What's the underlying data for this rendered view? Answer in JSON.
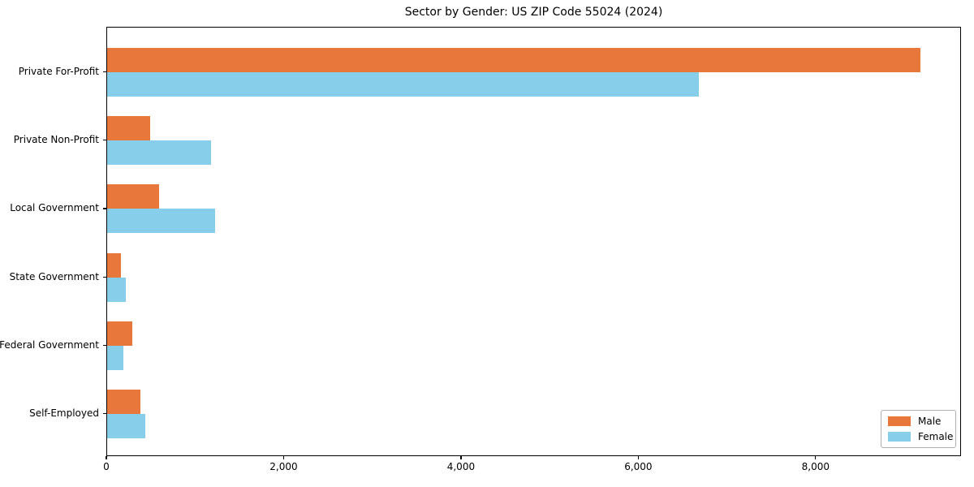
{
  "title": "Sector by Gender: US ZIP Code 55024 (2024)",
  "colors": {
    "male": "#e8773b",
    "female": "#87ceeb",
    "axis": "#000000",
    "legend_border": "#b0b0b0",
    "background": "#ffffff"
  },
  "chart_data": {
    "type": "bar",
    "orientation": "horizontal",
    "title": "Sector by Gender: US ZIP Code 55024 (2024)",
    "categories": [
      "Private For-Profit",
      "Private Non-Profit",
      "Local Government",
      "State Government",
      "Federal Government",
      "Self-Employed"
    ],
    "series": [
      {
        "name": "Male",
        "color": "#e8773b",
        "values": [
          9190,
          485,
          590,
          160,
          285,
          375
        ]
      },
      {
        "name": "Female",
        "color": "#87ceeb",
        "values": [
          6690,
          1170,
          1220,
          215,
          180,
          430
        ]
      }
    ],
    "xlabel": "",
    "ylabel": "",
    "xlim": [
      0,
      9640
    ],
    "x_ticks": [
      {
        "value": 0,
        "label": "0"
      },
      {
        "value": 2000,
        "label": "2,000"
      },
      {
        "value": 4000,
        "label": "4,000"
      },
      {
        "value": 6000,
        "label": "6,000"
      },
      {
        "value": 8000,
        "label": "8,000"
      }
    ],
    "grid": false,
    "legend": {
      "position": "lower right",
      "entries": [
        "Male",
        "Female"
      ]
    }
  }
}
